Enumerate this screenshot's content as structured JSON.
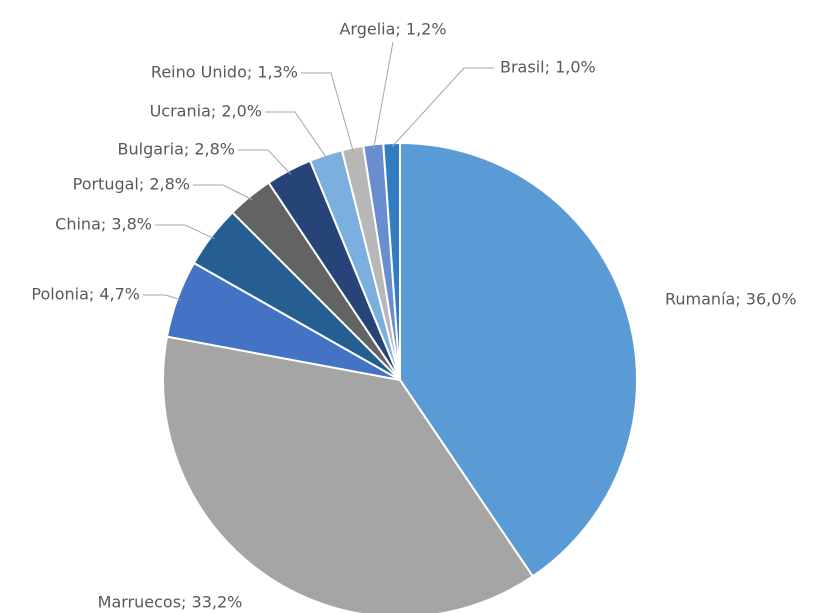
{
  "chart_data": {
    "type": "pie",
    "categories": [
      "Rumanía",
      "Marruecos",
      "Polonia",
      "China",
      "Portugal",
      "Bulgaria",
      "Ucrania",
      "Reino Unido",
      "Argelia",
      "Brasil"
    ],
    "values": [
      36.0,
      33.2,
      4.7,
      3.8,
      2.8,
      2.8,
      2.0,
      1.3,
      1.2,
      1.0
    ],
    "value_labels": [
      "Rumanía; 36,0%",
      "Marruecos; 33,2%",
      "Polonia; 4,7%",
      "China; 3,8%",
      "Portugal; 2,8%",
      "Bulgaria; 2,8%",
      "Ucrania; 2,0%",
      "Reino Unido; 1,3%",
      "Argelia; 1,2%",
      "Brasil; 1,0%"
    ],
    "colors": [
      "#5b9bd5",
      "#a5a5a5",
      "#4472c4",
      "#255e91",
      "#636363",
      "#264478",
      "#7cafdd",
      "#b7b7b7",
      "#698ed0",
      "#327dc2"
    ]
  }
}
